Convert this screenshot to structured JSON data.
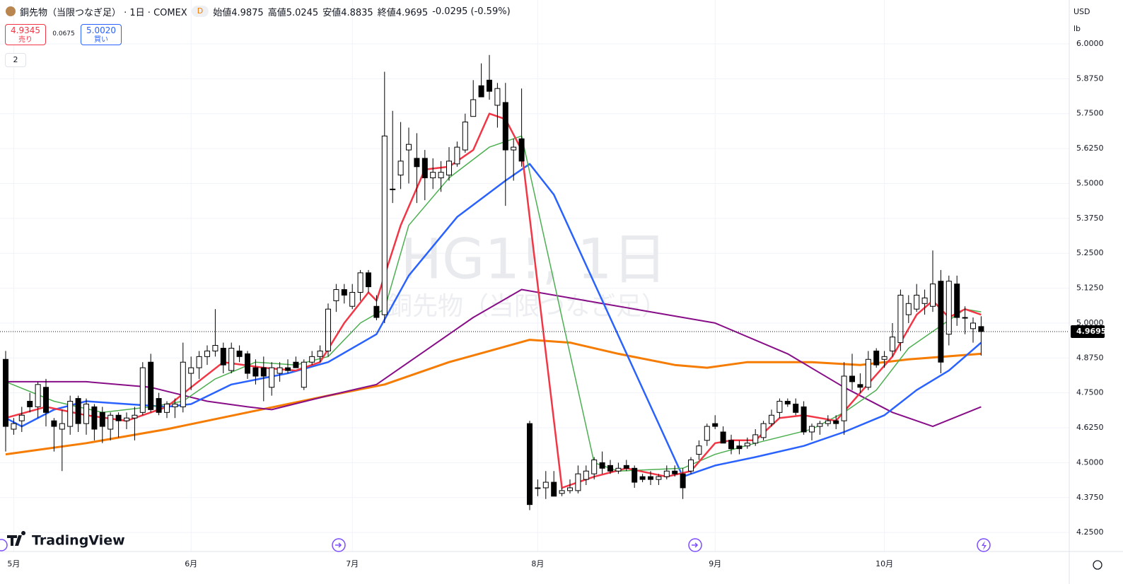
{
  "header": {
    "title": "銅先物（当限つなぎ足） · 1日 · COMEX",
    "badge": "D",
    "ohlc": [
      "始値4.9875",
      "高値5.0245",
      "安値4.8835",
      "終値4.9695"
    ],
    "change": "-0.0295 (-0.59%)",
    "indicators": "2"
  },
  "trade": {
    "sell_price": "4.9345",
    "sell_label": "売り",
    "spread": "0.0675",
    "buy_price": "5.0020",
    "buy_label": "買い"
  },
  "axis_units": {
    "currency": "USD",
    "unit": "lb"
  },
  "watermark": {
    "symbol": "HG1!, 1日",
    "name": "銅先物（当限つなぎ足）"
  },
  "footer": {
    "logo": "TradingView"
  },
  "chart_data": {
    "type": "candlestick",
    "grid": true,
    "up_color": "#ffffff",
    "down_color": "#000000",
    "categories": [
      null,
      "5月",
      null,
      null,
      null,
      null,
      null,
      null,
      null,
      null,
      null,
      null,
      null,
      null,
      null,
      null,
      null,
      null,
      null,
      null,
      null,
      null,
      null,
      "6月",
      null,
      null,
      null,
      null,
      null,
      null,
      null,
      null,
      null,
      null,
      null,
      null,
      null,
      null,
      null,
      null,
      null,
      null,
      null,
      "7月",
      null,
      null,
      null,
      null,
      null,
      null,
      null,
      null,
      null,
      null,
      null,
      null,
      null,
      null,
      null,
      null,
      null,
      null,
      null,
      null,
      null,
      null,
      "8月",
      null,
      null,
      null,
      null,
      null,
      null,
      null,
      null,
      null,
      null,
      null,
      null,
      null,
      null,
      null,
      null,
      null,
      null,
      null,
      null,
      null,
      "9月",
      null,
      null,
      null,
      null,
      null,
      null,
      null,
      null,
      null,
      null,
      null,
      null,
      null,
      null,
      null,
      null,
      null,
      null,
      null,
      null,
      "10月",
      null,
      null,
      null,
      null,
      null,
      null,
      null,
      null,
      null,
      null,
      null,
      null
    ],
    "open": [
      4.87,
      4.62,
      4.65,
      4.72,
      4.7,
      4.77,
      4.65,
      4.62,
      4.63,
      4.73,
      4.64,
      4.7,
      4.68,
      4.62,
      4.67,
      4.65,
      4.66,
      4.68,
      4.86,
      4.73,
      4.68,
      4.7,
      4.7,
      4.82,
      4.84,
      4.88,
      4.9,
      4.91,
      4.83,
      4.9,
      4.89,
      4.84,
      4.84,
      4.77,
      4.82,
      4.84,
      4.86,
      4.77,
      4.86,
      4.88,
      4.9,
      5.08,
      5.12,
      5.06,
      5.11,
      5.18,
      5.06,
      5.03,
      5.48,
      5.53,
      5.62,
      5.59,
      5.59,
      5.52,
      5.52,
      5.53,
      5.57,
      5.62,
      5.74,
      5.85,
      5.87,
      5.78,
      5.79,
      5.62,
      5.66,
      4.64,
      4.41,
      4.41,
      4.43,
      4.39,
      4.4,
      4.4,
      4.44,
      4.46,
      4.5,
      4.49,
      4.47,
      4.49,
      4.48,
      4.45,
      4.45,
      4.44,
      4.45,
      4.47,
      4.46,
      4.47,
      4.53,
      4.58,
      4.64,
      4.61,
      4.58,
      4.56,
      4.56,
      4.57,
      4.59,
      4.64,
      4.68,
      4.72,
      4.71,
      4.7,
      4.61,
      4.63,
      4.64,
      4.65,
      4.65,
      4.81,
      4.78,
      4.77,
      4.9,
      4.87,
      4.9,
      4.93,
      5.03,
      5.05,
      5.07,
      5.06,
      5.15,
      4.96,
      5.14,
      5.02,
      4.98,
      4.9875
    ],
    "high": [
      4.9,
      4.66,
      4.7,
      4.75,
      4.79,
      4.8,
      4.66,
      4.69,
      4.74,
      4.74,
      4.73,
      4.71,
      4.7,
      4.68,
      4.68,
      4.68,
      4.7,
      4.86,
      4.89,
      4.75,
      4.72,
      4.73,
      4.93,
      4.88,
      4.9,
      4.92,
      5.05,
      4.93,
      4.93,
      4.92,
      4.9,
      4.87,
      4.88,
      4.86,
      4.86,
      4.87,
      4.88,
      4.87,
      4.9,
      4.92,
      5.07,
      5.14,
      5.14,
      5.14,
      5.19,
      5.19,
      5.1,
      5.9,
      5.76,
      5.72,
      5.7,
      5.68,
      5.62,
      5.59,
      5.58,
      5.63,
      5.65,
      5.75,
      5.87,
      5.93,
      5.96,
      5.86,
      5.86,
      5.66,
      5.84,
      4.65,
      4.44,
      4.47,
      4.47,
      4.41,
      4.44,
      4.49,
      4.49,
      4.52,
      4.54,
      4.51,
      4.5,
      4.51,
      4.49,
      4.46,
      4.47,
      4.46,
      4.49,
      4.49,
      4.48,
      4.52,
      4.58,
      4.64,
      4.67,
      4.63,
      4.6,
      4.58,
      4.59,
      4.62,
      4.65,
      4.69,
      4.73,
      4.73,
      4.73,
      4.72,
      4.64,
      4.65,
      4.67,
      4.67,
      4.86,
      4.89,
      4.82,
      4.9,
      4.91,
      4.9,
      5.0,
      5.12,
      5.1,
      5.14,
      5.12,
      5.26,
      5.19,
      5.17,
      5.17,
      5.06,
      5.02,
      5.0245
    ],
    "low": [
      4.54,
      4.6,
      4.61,
      4.68,
      4.66,
      4.63,
      4.54,
      4.47,
      4.6,
      4.61,
      4.6,
      4.58,
      4.57,
      4.58,
      4.59,
      4.62,
      4.58,
      4.67,
      4.68,
      4.67,
      4.66,
      4.66,
      4.68,
      4.76,
      4.8,
      4.85,
      4.88,
      4.82,
      4.82,
      4.86,
      4.8,
      4.78,
      4.72,
      4.74,
      4.79,
      4.82,
      4.84,
      4.76,
      4.85,
      4.86,
      4.88,
      5.04,
      5.07,
      5.05,
      5.08,
      5.11,
      5.01,
      5.0,
      5.43,
      5.48,
      5.5,
      5.43,
      5.44,
      5.48,
      5.47,
      5.51,
      5.56,
      5.61,
      5.74,
      5.81,
      5.8,
      5.7,
      5.42,
      5.51,
      5.56,
      4.33,
      4.38,
      4.37,
      4.38,
      4.38,
      4.39,
      4.39,
      4.42,
      4.44,
      4.46,
      4.46,
      4.46,
      4.47,
      4.41,
      4.43,
      4.42,
      4.42,
      4.44,
      4.45,
      4.37,
      4.46,
      4.51,
      4.56,
      4.62,
      4.57,
      4.53,
      4.53,
      4.55,
      4.56,
      4.58,
      4.63,
      4.66,
      4.7,
      4.67,
      4.6,
      4.58,
      4.6,
      4.63,
      4.62,
      4.6,
      4.76,
      4.75,
      4.76,
      4.84,
      4.84,
      4.88,
      4.9,
      5.0,
      5.04,
      5.03,
      5.04,
      4.82,
      4.92,
      4.99,
      4.96,
      4.93,
      4.8835
    ],
    "close": [
      4.63,
      4.64,
      4.67,
      4.7,
      4.78,
      4.68,
      4.63,
      4.64,
      4.72,
      4.64,
      4.71,
      4.62,
      4.63,
      4.67,
      4.65,
      4.66,
      4.67,
      4.84,
      4.69,
      4.68,
      4.71,
      4.71,
      4.86,
      4.84,
      4.88,
      4.9,
      4.92,
      4.85,
      4.91,
      4.88,
      4.82,
      4.81,
      4.81,
      4.84,
      4.84,
      4.83,
      4.84,
      4.86,
      4.88,
      4.9,
      5.05,
      5.12,
      5.1,
      5.11,
      5.18,
      5.13,
      5.02,
      5.67,
      5.48,
      5.58,
      5.64,
      5.56,
      5.52,
      5.54,
      5.54,
      5.58,
      5.63,
      5.72,
      5.8,
      5.81,
      5.83,
      5.84,
      5.62,
      5.63,
      5.58,
      4.35,
      4.41,
      4.43,
      4.38,
      4.4,
      4.41,
      4.46,
      4.47,
      4.51,
      4.48,
      4.47,
      4.48,
      4.48,
      4.43,
      4.44,
      4.44,
      4.45,
      4.47,
      4.46,
      4.41,
      4.51,
      4.56,
      4.63,
      4.63,
      4.57,
      4.55,
      4.55,
      4.57,
      4.6,
      4.64,
      4.67,
      4.72,
      4.71,
      4.68,
      4.61,
      4.63,
      4.64,
      4.65,
      4.64,
      4.81,
      4.79,
      4.77,
      4.87,
      4.85,
      4.88,
      4.95,
      5.1,
      5.07,
      5.1,
      5.09,
      5.14,
      4.86,
      5.15,
      5.02,
      5.02,
      5.0,
      4.9695
    ],
    "last_price": 4.9695,
    "ylim": [
      4.182,
      6.157
    ],
    "yticks": [
      {
        "value": 4.25,
        "label": "4.2500"
      },
      {
        "value": 4.375,
        "label": "4.3750"
      },
      {
        "value": 4.5,
        "label": "4.5000"
      },
      {
        "value": 4.625,
        "label": "4.6250"
      },
      {
        "value": 4.75,
        "label": "4.7500"
      },
      {
        "value": 4.875,
        "label": "4.8750"
      },
      {
        "value": 5,
        "label": "5.0000"
      },
      {
        "value": 5.125,
        "label": "5.1250"
      },
      {
        "value": 5.25,
        "label": "5.2500"
      },
      {
        "value": 5.375,
        "label": "5.3750"
      },
      {
        "value": 5.5,
        "label": "5.5000"
      },
      {
        "value": 5.625,
        "label": "5.6250"
      },
      {
        "value": 5.75,
        "label": "5.7500"
      },
      {
        "value": 5.875,
        "label": "5.8750"
      },
      {
        "value": 6,
        "label": "6.0000"
      }
    ],
    "series": [
      {
        "color": "#f57c00",
        "width": 3,
        "x": [
          0,
          10,
          20,
          30,
          40,
          47,
          55,
          60,
          65,
          70,
          76,
          83,
          87,
          92,
          100,
          106,
          112,
          121
        ],
        "values": [
          4.53,
          4.57,
          4.62,
          4.68,
          4.74,
          4.78,
          4.86,
          4.9,
          4.94,
          4.93,
          4.89,
          4.85,
          4.84,
          4.86,
          4.86,
          4.85,
          4.87,
          4.89
        ]
      },
      {
        "color": "#880e88",
        "width": 2,
        "x": [
          0,
          10,
          18,
          25,
          30,
          33,
          40,
          46,
          52,
          58,
          64,
          70,
          80,
          88,
          97,
          104,
          110,
          115,
          121
        ],
        "values": [
          4.79,
          4.79,
          4.77,
          4.72,
          4.7,
          4.69,
          4.74,
          4.78,
          4.9,
          5.02,
          5.12,
          5.09,
          5.04,
          5.0,
          4.89,
          4.77,
          4.68,
          4.63,
          4.7
        ]
      },
      {
        "color": "#2962ff",
        "width": 2.5,
        "x": [
          0,
          2,
          6,
          10,
          15,
          20,
          23,
          28,
          35,
          40,
          46,
          50,
          56,
          62,
          65,
          68,
          84,
          88,
          93,
          99,
          104,
          109,
          113,
          117,
          121
        ],
        "values": [
          4.66,
          4.63,
          4.69,
          4.72,
          4.71,
          4.7,
          4.71,
          4.78,
          4.82,
          4.86,
          4.96,
          5.17,
          5.38,
          5.51,
          5.57,
          5.46,
          4.45,
          4.49,
          4.52,
          4.56,
          4.61,
          4.67,
          4.76,
          4.83,
          4.93
        ]
      },
      {
        "color": "#4caf50",
        "width": 1.5,
        "x": [
          0,
          6,
          12,
          18,
          22,
          26,
          31,
          36,
          40,
          44,
          47,
          50,
          55,
          60,
          64,
          73,
          76,
          84,
          88,
          93,
          100,
          104,
          108,
          112,
          116,
          119,
          121
        ],
        "values": [
          4.79,
          4.72,
          4.68,
          4.7,
          4.72,
          4.8,
          4.86,
          4.85,
          4.88,
          5.0,
          5.05,
          5.35,
          5.52,
          5.63,
          5.67,
          4.5,
          4.47,
          4.48,
          4.53,
          4.57,
          4.62,
          4.68,
          4.76,
          4.91,
          4.99,
          5.05,
          5.04
        ]
      },
      {
        "color": "#f23645",
        "width": 2.5,
        "x": [
          0,
          5,
          10,
          15,
          20,
          23,
          27,
          32,
          36,
          39,
          42,
          45,
          46,
          49,
          52,
          55,
          58,
          60,
          62,
          64,
          69,
          73,
          77,
          82,
          85,
          88,
          90,
          93,
          96,
          99,
          103,
          106,
          110,
          113,
          115,
          117,
          119,
          121
        ],
        "values": [
          4.66,
          4.7,
          4.67,
          4.65,
          4.7,
          4.77,
          4.86,
          4.84,
          4.83,
          4.86,
          5.0,
          5.11,
          5.08,
          5.35,
          5.55,
          5.56,
          5.62,
          5.75,
          5.73,
          5.62,
          4.41,
          4.45,
          4.48,
          4.45,
          4.47,
          4.57,
          4.58,
          4.58,
          4.66,
          4.67,
          4.65,
          4.75,
          4.88,
          5.03,
          5.08,
          5.02,
          5.05,
          5.03
        ]
      }
    ]
  }
}
